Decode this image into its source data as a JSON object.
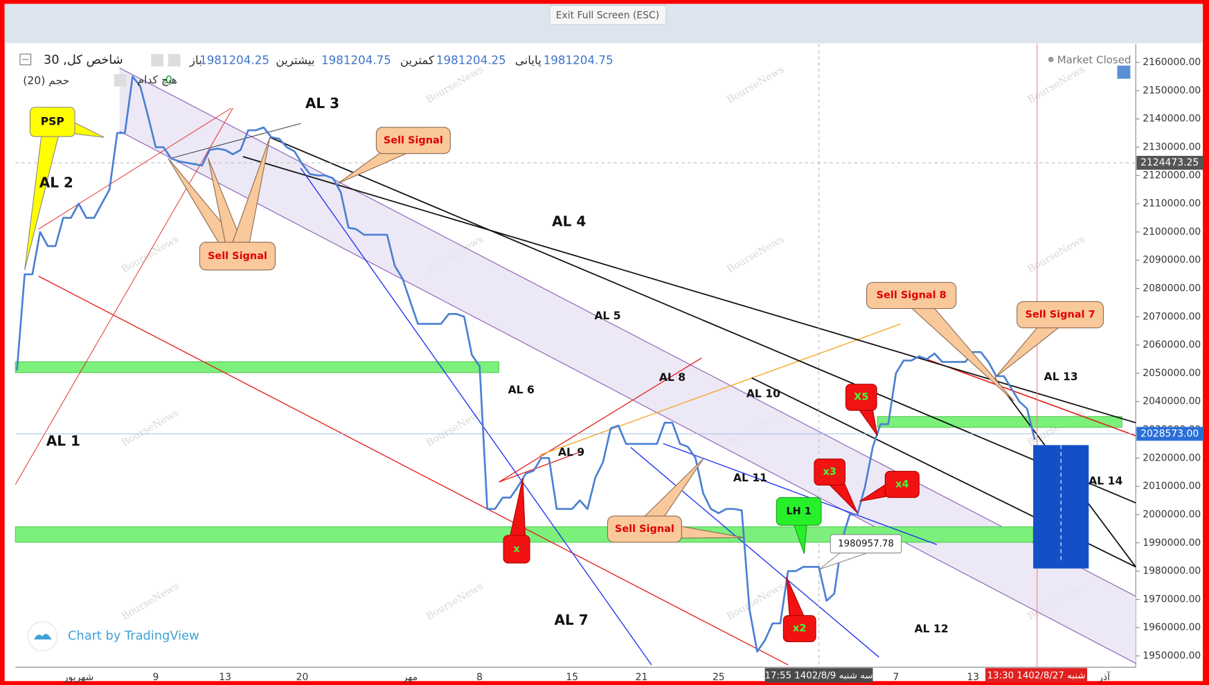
{
  "top_bar": {
    "exit_button": "Exit Full Screen (ESC)"
  },
  "chart_data": {
    "type": "line",
    "symbol": "شاخص کل, 30",
    "legend_items": [
      "باز",
      "1981204.25",
      "بیشترین",
      "1981204.75",
      "کمترین",
      "1981204.25",
      "پایانی",
      "1981204.75"
    ],
    "volume_label": "حجم (20)",
    "indicator_label": "هیچ کدام",
    "indicator_value": "0",
    "status": "Market Closed",
    "color": "#4a7fd4",
    "categories": [
      null,
      null,
      null,
      null,
      null,
      null,
      null,
      null,
      "شهریور",
      null,
      null,
      null,
      null,
      null,
      null,
      null,
      null,
      null,
      "9",
      null,
      null,
      null,
      null,
      null,
      null,
      null,
      null,
      "13",
      null,
      null,
      null,
      null,
      null,
      null,
      null,
      null,
      null,
      "20",
      null,
      null,
      null,
      null,
      null,
      null,
      null,
      null,
      null,
      null,
      null,
      null,
      null,
      "مهر",
      null,
      null,
      null,
      null,
      null,
      null,
      null,
      null,
      "8",
      null,
      null,
      null,
      null,
      null,
      null,
      null,
      null,
      null,
      null,
      null,
      "15",
      null,
      null,
      null,
      null,
      null,
      null,
      null,
      null,
      "21",
      null,
      null,
      null,
      null,
      null,
      null,
      null,
      null,
      null,
      "25",
      null,
      null,
      null,
      null,
      null,
      null,
      null,
      null,
      null,
      null,
      null,
      null,
      null,
      null,
      null,
      null,
      null,
      null,
      null,
      null,
      null,
      null,
      "7",
      null,
      null,
      null,
      null,
      null,
      null,
      null,
      null,
      null,
      "13",
      null,
      null,
      null,
      null,
      null,
      null,
      null,
      null,
      null,
      null,
      null,
      null,
      null,
      null,
      null,
      null,
      "آذر",
      null,
      null,
      null,
      null
    ],
    "values": [
      2051000,
      2085000,
      2085000,
      2100000,
      2095000,
      2095000,
      2105000,
      2105000,
      2110000,
      2105000,
      2105000,
      2110000,
      2115000,
      2135000,
      2135000,
      2155000,
      2151500,
      2141000,
      2130000,
      2130000,
      2126000,
      2125000,
      2124500,
      2124000,
      2123500,
      2129000,
      2129500,
      2129000,
      2127500,
      2129000,
      2136000,
      2136000,
      2137000,
      2133500,
      2133000,
      2130000,
      2128500,
      2124000,
      2120500,
      2120000,
      2120000,
      2119000,
      2114000,
      2101500,
      2101000,
      2099000,
      2099000,
      2099000,
      2099000,
      2088000,
      2083500,
      2075500,
      2067500,
      2067500,
      2067500,
      2067500,
      2071000,
      2071000,
      2070000,
      2056500,
      2052500,
      2002000,
      2002000,
      2006000,
      2006000,
      2010000,
      2014500,
      2015500,
      2020000,
      2020000,
      2002000,
      2002000,
      2002000,
      2005000,
      2002000,
      2013000,
      2018500,
      2030500,
      2031500,
      2025000,
      2025000,
      2025000,
      2025000,
      2025000,
      2032500,
      2032500,
      2025000,
      2024000,
      2020000,
      2007500,
      2002000,
      2000500,
      2002000,
      2002000,
      2001500,
      1966500,
      1951500,
      1955500,
      1961500,
      1961500,
      1980000,
      1980000,
      1981500,
      1981500,
      1981500,
      1969500,
      1972000,
      1991000,
      2000000,
      2000000,
      2010000,
      2024000,
      2032000,
      2032000,
      2050000,
      2054500,
      2054500,
      2056000,
      2055000,
      2057000,
      2054000,
      2054000,
      2054000,
      2054000,
      2057500,
      2057500,
      2054000,
      2049000,
      2049000,
      2044500,
      2040000,
      2037500,
      2026500,
      null,
      null,
      null,
      null,
      null,
      null,
      null,
      null,
      null,
      null,
      null,
      null,
      null
    ],
    "ylim": [
      1946000,
      2166500
    ],
    "yticks": [
      {
        "value": 1950000,
        "label": "1950000.00"
      },
      {
        "value": 1960000,
        "label": "1960000.00"
      },
      {
        "value": 1970000,
        "label": "1970000.00"
      },
      {
        "value": 1980000,
        "label": "1980000.00"
      },
      {
        "value": 1990000,
        "label": "1990000.00"
      },
      {
        "value": 2000000,
        "label": "2000000.00"
      },
      {
        "value": 2010000,
        "label": "2010000.00"
      },
      {
        "value": 2020000,
        "label": "2020000.00"
      },
      {
        "value": 2030000,
        "label": "2030000.00"
      },
      {
        "value": 2040000,
        "label": "2040000.00"
      },
      {
        "value": 2050000,
        "label": "2050000.00"
      },
      {
        "value": 2060000,
        "label": "2060000.00"
      },
      {
        "value": 2070000,
        "label": "2070000.00"
      },
      {
        "value": 2080000,
        "label": "2080000.00"
      },
      {
        "value": 2090000,
        "label": "2090000.00"
      },
      {
        "value": 2100000,
        "label": "2100000.00"
      },
      {
        "value": 2110000,
        "label": "2110000.00"
      },
      {
        "value": 2120000,
        "label": "2120000.00"
      },
      {
        "value": 2130000,
        "label": "2130000.00"
      },
      {
        "value": 2140000,
        "label": "2140000.00"
      },
      {
        "value": 2150000,
        "label": "2150000.00"
      },
      {
        "value": 2160000,
        "label": "2160000.00"
      }
    ],
    "grid": false,
    "crosshair_price": {
      "value": 2124473.25,
      "label": "2124473.25"
    },
    "last_price": {
      "value": 2028573,
      "label": "2028573.00"
    },
    "time_labels": [
      "سه شنبه 1402/8/9 17:55",
      "شنبه 1402/8/27 13:30"
    ],
    "annotations": [
      "PSP",
      "AL 2",
      "AL 3",
      "Sell Signal",
      "Sell Signal",
      "AL 4",
      "AL 5",
      "AL 6",
      "AL 1",
      "AL 8",
      "AL 9",
      "AL 10",
      "X5",
      "Sell Signal 8",
      "Sell Signal 7",
      "AL 13",
      "AL 14",
      "x3",
      "x4",
      "AL 11",
      "LH 1",
      "Sell Signal",
      "x",
      "AL 7",
      "x2",
      "AL 12",
      "1980957.78"
    ],
    "watermark": "BourseNews",
    "credit": "Chart by TradingView"
  }
}
